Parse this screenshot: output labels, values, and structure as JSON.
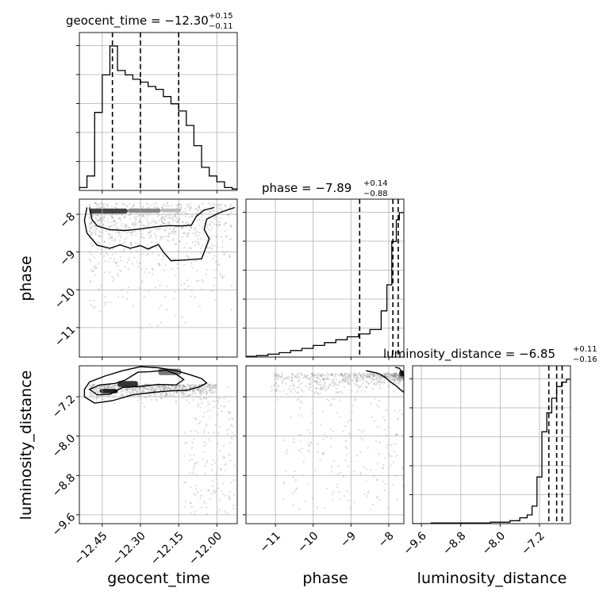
{
  "chart_data": {
    "type": "corner",
    "parameters": [
      "geocent_time",
      "phase",
      "luminosity_distance"
    ],
    "titles": [
      {
        "base": "geocent_time = −12.30",
        "plus": "+0.15",
        "minus": "−0.11"
      },
      {
        "base": "phase = −7.89",
        "plus": "+0.14",
        "minus": "−0.88"
      },
      {
        "base": "luminosity_distance = −6.85",
        "plus": "+0.11",
        "minus": "−0.16"
      }
    ],
    "ranges": [
      [
        -12.54,
        -11.92
      ],
      [
        -11.78,
        -7.6
      ],
      [
        -9.78,
        -6.57
      ]
    ],
    "ticks": [
      {
        "values": [
          -12.45,
          -12.3,
          -12.15,
          -12.0
        ],
        "labels": [
          "−12.45",
          "−12.30",
          "−12.15",
          "−12.00"
        ]
      },
      {
        "values": [
          -11,
          -10,
          -9,
          -8
        ],
        "labels": [
          "−11",
          "−10",
          "−9",
          "−8"
        ]
      },
      {
        "values": [
          -9.6,
          -8.8,
          -8.0,
          -7.2
        ],
        "labels": [
          "−9.6",
          "−8.8",
          "−8.0",
          "−7.2"
        ]
      }
    ],
    "quantiles": [
      [
        -12.41,
        -12.3,
        -12.15
      ],
      [
        -8.77,
        -7.89,
        -7.75
      ],
      [
        -7.01,
        -6.85,
        -6.74
      ]
    ],
    "histograms": [
      {
        "edges": [
          -12.54,
          -12.51,
          -12.48,
          -12.45,
          -12.42,
          -12.39,
          -12.36,
          -12.33,
          -12.3,
          -12.27,
          -12.24,
          -12.21,
          -12.18,
          -12.15,
          -12.12,
          -12.09,
          -12.06,
          -12.03,
          -12.0,
          -11.97,
          -11.94,
          -11.92
        ],
        "counts": [
          0.2,
          1.0,
          5.4,
          8.0,
          10.0,
          8.3,
          8.0,
          7.7,
          7.5,
          7.2,
          7.0,
          6.5,
          6.0,
          5.5,
          4.5,
          3.1,
          1.6,
          1.0,
          0.6,
          0.2,
          0.1
        ]
      },
      {
        "edges": [
          -11.78,
          -11.5,
          -11.2,
          -10.9,
          -10.6,
          -10.3,
          -10.0,
          -9.7,
          -9.4,
          -9.1,
          -8.8,
          -8.5,
          -8.2,
          -8.05,
          -7.92,
          -7.8,
          -7.72,
          -7.6
        ],
        "counts": [
          0.05,
          0.1,
          0.2,
          0.3,
          0.45,
          0.6,
          0.8,
          1.0,
          1.2,
          1.4,
          1.6,
          1.9,
          3.2,
          5.0,
          8.0,
          9.5,
          10.0
        ]
      },
      {
        "edges": [
          -9.78,
          -9.4,
          -9.0,
          -8.6,
          -8.2,
          -7.8,
          -7.6,
          -7.45,
          -7.35,
          -7.25,
          -7.15,
          -7.05,
          -6.95,
          -6.85,
          -6.75,
          -6.65,
          -6.57
        ],
        "counts": [
          0.0,
          0.05,
          0.05,
          0.05,
          0.1,
          0.2,
          0.4,
          0.6,
          1.2,
          3.2,
          6.3,
          7.6,
          8.6,
          9.4,
          9.7,
          9.9
        ]
      }
    ],
    "contours": {
      "1_0": [
        [
          [
            -12.5,
            -7.82
          ],
          [
            -12.49,
            -8.14
          ],
          [
            -12.47,
            -8.31
          ],
          [
            -12.42,
            -8.41
          ],
          [
            -12.36,
            -8.43
          ],
          [
            -12.3,
            -8.39
          ],
          [
            -12.24,
            -8.33
          ],
          [
            -12.19,
            -8.3
          ],
          [
            -12.14,
            -8.31
          ],
          [
            -12.1,
            -8.29
          ],
          [
            -12.08,
            -8.05
          ],
          [
            -12.05,
            -7.89
          ],
          [
            -12.01,
            -7.82
          ]
        ],
        [
          [
            -12.51,
            -7.82
          ],
          [
            -12.52,
            -8.16
          ],
          [
            -12.51,
            -8.5
          ],
          [
            -12.47,
            -8.82
          ],
          [
            -12.42,
            -8.9
          ],
          [
            -12.38,
            -8.81
          ],
          [
            -12.34,
            -8.9
          ],
          [
            -12.3,
            -8.83
          ],
          [
            -12.27,
            -8.92
          ],
          [
            -12.23,
            -8.8
          ],
          [
            -12.21,
            -9.0
          ],
          [
            -12.18,
            -9.23
          ],
          [
            -12.12,
            -9.21
          ],
          [
            -12.06,
            -9.18
          ],
          [
            -12.03,
            -8.65
          ],
          [
            -12.05,
            -8.4
          ],
          [
            -12.04,
            -8.13
          ],
          [
            -11.99,
            -7.96
          ],
          [
            -11.93,
            -7.82
          ]
        ]
      ],
      "2_0": [
        [
          [
            -12.42,
            -7.15
          ],
          [
            -12.37,
            -7.01
          ],
          [
            -12.3,
            -6.99
          ],
          [
            -12.23,
            -6.95
          ],
          [
            -12.16,
            -6.96
          ],
          [
            -12.13,
            -6.85
          ],
          [
            -12.16,
            -6.74
          ],
          [
            -12.2,
            -6.66
          ],
          [
            -12.26,
            -6.69
          ],
          [
            -12.31,
            -6.7
          ],
          [
            -12.36,
            -6.86
          ],
          [
            -12.4,
            -6.93
          ],
          [
            -12.46,
            -6.96
          ],
          [
            -12.5,
            -7.05
          ],
          [
            -12.47,
            -7.16
          ],
          [
            -12.42,
            -7.15
          ]
        ],
        [
          [
            -12.48,
            -7.33
          ],
          [
            -12.41,
            -7.28
          ],
          [
            -12.33,
            -7.16
          ],
          [
            -12.25,
            -7.11
          ],
          [
            -12.18,
            -7.08
          ],
          [
            -12.12,
            -7.07
          ],
          [
            -12.07,
            -7.0
          ],
          [
            -12.04,
            -6.92
          ],
          [
            -12.06,
            -6.83
          ],
          [
            -12.1,
            -6.76
          ],
          [
            -12.16,
            -6.67
          ],
          [
            -12.23,
            -6.61
          ],
          [
            -12.3,
            -6.59
          ],
          [
            -12.37,
            -6.67
          ],
          [
            -12.44,
            -6.78
          ],
          [
            -12.5,
            -6.9
          ],
          [
            -12.52,
            -7.05
          ],
          [
            -12.52,
            -7.2
          ],
          [
            -12.48,
            -7.33
          ]
        ]
      ],
      "2_1": [
        [
          [
            -7.6,
            -6.79
          ],
          [
            -7.62,
            -6.75
          ],
          [
            -7.65,
            -6.7
          ],
          [
            -7.72,
            -6.62
          ],
          [
            -7.83,
            -6.6
          ]
        ],
        [
          [
            -7.6,
            -7.11
          ],
          [
            -7.7,
            -7.05
          ],
          [
            -7.8,
            -6.98
          ],
          [
            -7.95,
            -6.9
          ],
          [
            -8.1,
            -6.8
          ],
          [
            -8.3,
            -6.72
          ],
          [
            -8.6,
            -6.67
          ]
        ]
      ]
    },
    "scatter_cells": [
      "1_0",
      "2_0",
      "2_1"
    ],
    "xlabels": [
      "geocent_time",
      "phase",
      "luminosity_distance"
    ],
    "ylabels": [
      "",
      "phase",
      "luminosity_distance"
    ]
  }
}
